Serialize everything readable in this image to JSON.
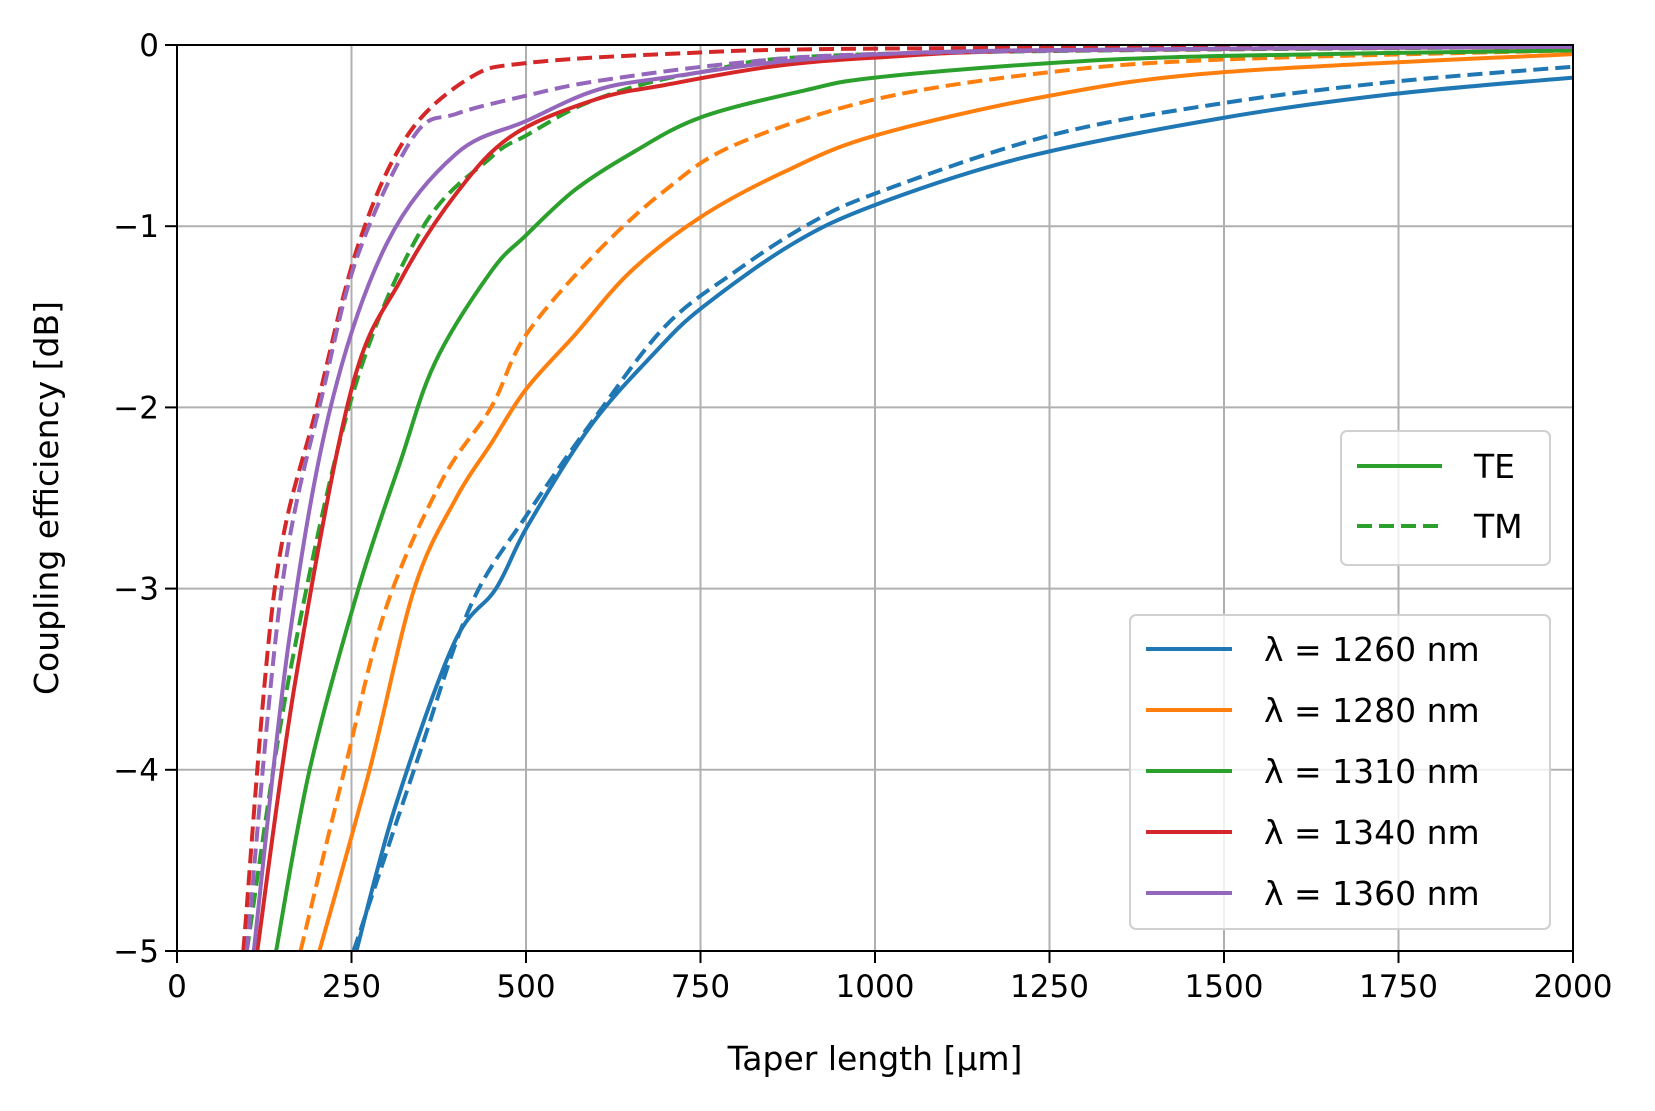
{
  "chart_data": {
    "type": "line",
    "xlabel": "Taper length [μm]",
    "ylabel": "Coupling efficiency [dB]",
    "xlim": [
      0,
      2000
    ],
    "ylim": [
      -5,
      0
    ],
    "xticks": [
      "0",
      "250",
      "500",
      "750",
      "1000",
      "1250",
      "1500",
      "1750",
      "2000"
    ],
    "yticks": [
      "0",
      "−1",
      "−2",
      "−3",
      "−4",
      "−5"
    ],
    "grid": true,
    "legend_placement": "center-right / lower-right",
    "style_legend": [
      {
        "name": "TE",
        "dash": "solid",
        "color": "#2ca02c"
      },
      {
        "name": "TM",
        "dash": "dashed",
        "color": "#2ca02c"
      }
    ],
    "wavelength_legend": [
      {
        "name": "λ = 1260 nm",
        "color": "#1f77b4"
      },
      {
        "name": "λ = 1280 nm",
        "color": "#ff7f0e"
      },
      {
        "name": "λ = 1310 nm",
        "color": "#2ca02c"
      },
      {
        "name": "λ = 1340 nm",
        "color": "#d62728"
      },
      {
        "name": "λ = 1360 nm",
        "color": "#9467bd"
      }
    ],
    "series": [
      {
        "wavelength": "1260 nm",
        "mode": "TE",
        "color": "#1f77b4",
        "dash": "solid",
        "x": [
          257,
          313,
          397,
          457,
          503,
          593,
          684,
          752,
          881,
          1002,
          1214,
          1502,
          1744,
          2000
        ],
        "y": [
          -5,
          -4.2,
          -3.3,
          -3.0,
          -2.65,
          -2.1,
          -1.7,
          -1.45,
          -1.1,
          -0.88,
          -0.62,
          -0.4,
          -0.27,
          -0.18
        ]
      },
      {
        "wavelength": "1260 nm",
        "mode": "TM",
        "color": "#1f77b4",
        "dash": "dashed",
        "x": [
          253,
          344,
          420,
          500,
          600,
          700,
          800,
          900,
          1000,
          1250,
          1500,
          1750,
          2000
        ],
        "y": [
          -5,
          -3.95,
          -3.1,
          -2.6,
          -2.05,
          -1.55,
          -1.25,
          -1.0,
          -0.82,
          -0.5,
          -0.32,
          -0.2,
          -0.12
        ]
      },
      {
        "wavelength": "1280 nm",
        "mode": "TE",
        "color": "#ff7f0e",
        "dash": "solid",
        "x": [
          204,
          276,
          340,
          400,
          450,
          500,
          570,
          650,
          750,
          870,
          1000,
          1250,
          1500,
          2000
        ],
        "y": [
          -5,
          -4,
          -3,
          -2.5,
          -2.2,
          -1.9,
          -1.6,
          -1.25,
          -0.95,
          -0.7,
          -0.5,
          -0.28,
          -0.15,
          -0.05
        ]
      },
      {
        "wavelength": "1280 nm",
        "mode": "TM",
        "color": "#ff7f0e",
        "dash": "dashed",
        "x": [
          177,
          240,
          300,
          380,
          450,
          500,
          600,
          700,
          800,
          1000,
          1250,
          1500,
          2000
        ],
        "y": [
          -5,
          -4,
          -3.1,
          -2.4,
          -2.0,
          -1.6,
          -1.15,
          -0.8,
          -0.55,
          -0.3,
          -0.15,
          -0.08,
          -0.03
        ]
      },
      {
        "wavelength": "1310 nm",
        "mode": "TE",
        "color": "#2ca02c",
        "dash": "solid",
        "x": [
          142,
          190,
          260,
          320,
          370,
          450,
          500,
          570,
          650,
          750,
          900,
          1000,
          1250,
          1500,
          2000
        ],
        "y": [
          -5,
          -4,
          -3,
          -2.3,
          -1.75,
          -1.25,
          -1.05,
          -0.8,
          -0.6,
          -0.4,
          -0.25,
          -0.18,
          -0.1,
          -0.06,
          -0.03
        ]
      },
      {
        "wavelength": "1310 nm",
        "mode": "TM",
        "color": "#2ca02c",
        "dash": "dashed",
        "x": [
          100,
          160,
          250,
          350,
          450,
          500,
          600,
          750,
          1000,
          2000
        ],
        "y": [
          -5,
          -3.5,
          -1.95,
          -1.02,
          -0.62,
          -0.5,
          -0.3,
          -0.15,
          -0.05,
          -0.01
        ]
      },
      {
        "wavelength": "1340 nm",
        "mode": "TE",
        "color": "#d62728",
        "dash": "solid",
        "x": [
          115,
          170,
          250,
          320,
          400,
          480,
          600,
          700,
          850,
          1000,
          1250,
          2000
        ],
        "y": [
          -5,
          -3.5,
          -1.9,
          -1.3,
          -0.82,
          -0.5,
          -0.3,
          -0.22,
          -0.12,
          -0.07,
          -0.03,
          -0.01
        ]
      },
      {
        "wavelength": "1340 nm",
        "mode": "TM",
        "color": "#d62728",
        "dash": "dashed",
        "x": [
          95,
          140,
          200,
          260,
          330,
          420,
          500,
          700,
          1000,
          2000
        ],
        "y": [
          -5,
          -3.0,
          -2.0,
          -1.1,
          -0.5,
          -0.18,
          -0.1,
          -0.05,
          -0.02,
          -0.01
        ]
      },
      {
        "wavelength": "1360 nm",
        "mode": "TE",
        "color": "#9467bd",
        "dash": "solid",
        "x": [
          110,
          160,
          220,
          300,
          400,
          500,
          600,
          700,
          900,
          1200,
          2000
        ],
        "y": [
          -5,
          -3.3,
          -2.0,
          -1.1,
          -0.6,
          -0.42,
          -0.25,
          -0.18,
          -0.08,
          -0.03,
          -0.01
        ]
      },
      {
        "wavelength": "1360 nm",
        "mode": "TM",
        "color": "#9467bd",
        "dash": "dashed",
        "x": [
          100,
          150,
          210,
          260,
          340,
          400,
          500,
          600,
          800,
          1000,
          1500,
          2000
        ],
        "y": [
          -5,
          -3.0,
          -1.9,
          -1.15,
          -0.5,
          -0.38,
          -0.28,
          -0.2,
          -0.1,
          -0.05,
          -0.02,
          -0.01
        ]
      }
    ]
  }
}
